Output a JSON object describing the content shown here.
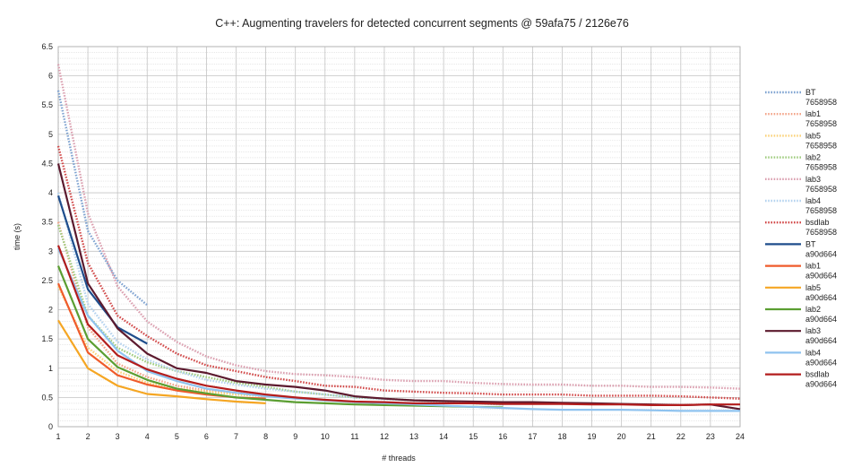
{
  "chart_data": {
    "type": "line",
    "title": "C++: Augmenting travelers for detected concurrent segments @ 59afa75 / 2126e76",
    "xlabel": "# threads",
    "ylabel": "time (s)",
    "xlim": [
      1,
      24
    ],
    "ylim": [
      0,
      6.5
    ],
    "x_ticks": [
      1,
      2,
      3,
      4,
      5,
      6,
      7,
      8,
      9,
      10,
      11,
      12,
      13,
      14,
      15,
      16,
      17,
      18,
      19,
      20,
      21,
      22,
      23,
      24
    ],
    "y_ticks": [
      0,
      0.5,
      1,
      1.5,
      2,
      2.5,
      3,
      3.5,
      4,
      4.5,
      5,
      5.5,
      6,
      6.5
    ],
    "grid": true,
    "legend_position": "right",
    "series": [
      {
        "name": "BT",
        "name2": "7658958",
        "color": "#7fa3d1",
        "style": "dotted",
        "x": [
          1,
          2,
          3,
          4
        ],
        "values": [
          5.75,
          3.35,
          2.5,
          2.08
        ]
      },
      {
        "name": "lab1",
        "name2": "7658958",
        "color": "#f3a58a",
        "style": "dotted",
        "x": [
          1,
          2,
          3,
          4,
          5,
          6,
          7,
          8
        ],
        "values": [
          3.5,
          1.7,
          1.08,
          0.85,
          0.7,
          0.62,
          0.58,
          0.55
        ]
      },
      {
        "name": "lab5",
        "name2": "7658958",
        "color": "#fbd27a",
        "style": "dotted",
        "x": [
          1,
          2,
          3,
          4,
          5,
          6,
          7,
          8
        ],
        "values": [
          2.4,
          1.35,
          0.95,
          0.75,
          0.65,
          0.6,
          0.55,
          0.52
        ]
      },
      {
        "name": "lab2",
        "name2": "7658958",
        "color": "#9fcc7e",
        "style": "dotted",
        "x": [
          1,
          2,
          3,
          4,
          5,
          6,
          7,
          8,
          9,
          10,
          11,
          12,
          13,
          14,
          15,
          16
        ],
        "values": [
          3.45,
          1.9,
          1.35,
          1.1,
          0.95,
          0.85,
          0.75,
          0.68,
          0.6,
          0.55,
          0.5,
          0.48,
          0.45,
          0.43,
          0.4,
          0.38
        ]
      },
      {
        "name": "lab3",
        "name2": "7658958",
        "color": "#dba0b0",
        "style": "dotted",
        "x": [
          1,
          2,
          3,
          4,
          5,
          6,
          7,
          8,
          9,
          10,
          11,
          12,
          13,
          14,
          15,
          16,
          17,
          18,
          19,
          20,
          21,
          22,
          23,
          24
        ],
        "values": [
          6.2,
          3.65,
          2.4,
          1.8,
          1.45,
          1.2,
          1.05,
          0.95,
          0.9,
          0.88,
          0.85,
          0.8,
          0.78,
          0.78,
          0.75,
          0.73,
          0.72,
          0.72,
          0.7,
          0.7,
          0.68,
          0.68,
          0.67,
          0.65
        ]
      },
      {
        "name": "lab4",
        "name2": "7658958",
        "color": "#b5d3ef",
        "style": "dotted",
        "x": [
          1,
          2,
          3,
          4,
          5,
          6,
          7,
          8,
          9,
          10,
          11,
          12,
          13,
          14,
          15,
          16
        ],
        "values": [
          4.0,
          2.1,
          1.45,
          1.15,
          0.95,
          0.8,
          0.72,
          0.65,
          0.6,
          0.55,
          0.5,
          0.47,
          0.45,
          0.42,
          0.4,
          0.38
        ]
      },
      {
        "name": "bsdlab",
        "name2": "7658958",
        "color": "#d24a4a",
        "style": "dotted",
        "x": [
          1,
          2,
          3,
          4,
          5,
          6,
          7,
          8,
          9,
          10,
          11,
          12,
          13,
          14,
          15,
          16,
          17,
          18,
          19,
          20,
          21,
          22,
          23,
          24
        ],
        "values": [
          4.8,
          2.8,
          1.9,
          1.55,
          1.25,
          1.05,
          0.95,
          0.85,
          0.78,
          0.7,
          0.68,
          0.62,
          0.6,
          0.58,
          0.57,
          0.55,
          0.55,
          0.55,
          0.53,
          0.53,
          0.53,
          0.52,
          0.5,
          0.48
        ]
      },
      {
        "name": "BT",
        "name2": "a90d664",
        "color": "#1e4d8c",
        "style": "solid",
        "x": [
          1,
          2,
          3,
          4
        ],
        "values": [
          3.95,
          2.35,
          1.7,
          1.42
        ]
      },
      {
        "name": "lab1",
        "name2": "a90d664",
        "color": "#ef5b2b",
        "style": "solid",
        "x": [
          1,
          2,
          3,
          4,
          5,
          6,
          7,
          8
        ],
        "values": [
          2.45,
          1.27,
          0.88,
          0.72,
          0.62,
          0.55,
          0.5,
          0.48
        ]
      },
      {
        "name": "lab5",
        "name2": "a90d664",
        "color": "#f5a623",
        "style": "solid",
        "x": [
          1,
          2,
          3,
          4,
          5,
          6,
          7,
          8
        ],
        "values": [
          1.82,
          1.0,
          0.7,
          0.56,
          0.52,
          0.47,
          0.43,
          0.4
        ]
      },
      {
        "name": "lab2",
        "name2": "a90d664",
        "color": "#5b9e32",
        "style": "solid",
        "x": [
          1,
          2,
          3,
          4,
          5,
          6,
          7,
          8,
          9,
          10,
          11,
          12,
          13,
          14,
          15,
          16
        ],
        "values": [
          2.75,
          1.5,
          1.02,
          0.8,
          0.65,
          0.57,
          0.5,
          0.46,
          0.42,
          0.4,
          0.38,
          0.37,
          0.36,
          0.35,
          0.34,
          0.33
        ]
      },
      {
        "name": "lab3",
        "name2": "a90d664",
        "color": "#5c1a2e",
        "style": "solid",
        "x": [
          1,
          2,
          3,
          4,
          5,
          6,
          7,
          8,
          9,
          10,
          11,
          12,
          13,
          14,
          15,
          16,
          17,
          18,
          19,
          20,
          21,
          22,
          23,
          24
        ],
        "values": [
          4.5,
          2.45,
          1.68,
          1.25,
          1.0,
          0.92,
          0.78,
          0.72,
          0.68,
          0.62,
          0.52,
          0.48,
          0.45,
          0.44,
          0.43,
          0.42,
          0.42,
          0.41,
          0.4,
          0.39,
          0.38,
          0.37,
          0.38,
          0.3
        ]
      },
      {
        "name": "lab4",
        "name2": "a90d664",
        "color": "#8fc3ef",
        "style": "solid",
        "x": [
          1,
          2,
          3,
          4,
          5,
          6,
          7,
          8,
          9,
          10,
          11,
          12,
          13,
          14,
          15,
          16,
          17,
          18,
          19,
          20,
          21,
          22,
          23,
          24
        ],
        "values": [
          3.05,
          1.9,
          1.3,
          0.95,
          0.78,
          0.65,
          0.58,
          0.52,
          0.48,
          0.45,
          0.42,
          0.4,
          0.38,
          0.36,
          0.34,
          0.32,
          0.3,
          0.29,
          0.29,
          0.29,
          0.28,
          0.27,
          0.27,
          0.27
        ]
      },
      {
        "name": "bsdlab",
        "name2": "a90d664",
        "color": "#b31d1d",
        "style": "solid",
        "x": [
          1,
          2,
          3,
          4,
          5,
          6,
          7,
          8,
          9,
          10,
          11,
          12,
          13,
          14,
          15,
          16,
          17,
          18,
          19,
          20,
          21,
          22,
          23,
          24
        ],
        "values": [
          3.1,
          1.75,
          1.22,
          0.98,
          0.82,
          0.7,
          0.62,
          0.55,
          0.5,
          0.46,
          0.43,
          0.42,
          0.4,
          0.4,
          0.4,
          0.39,
          0.39,
          0.39,
          0.38,
          0.38,
          0.37,
          0.37,
          0.38,
          0.38
        ]
      }
    ]
  }
}
